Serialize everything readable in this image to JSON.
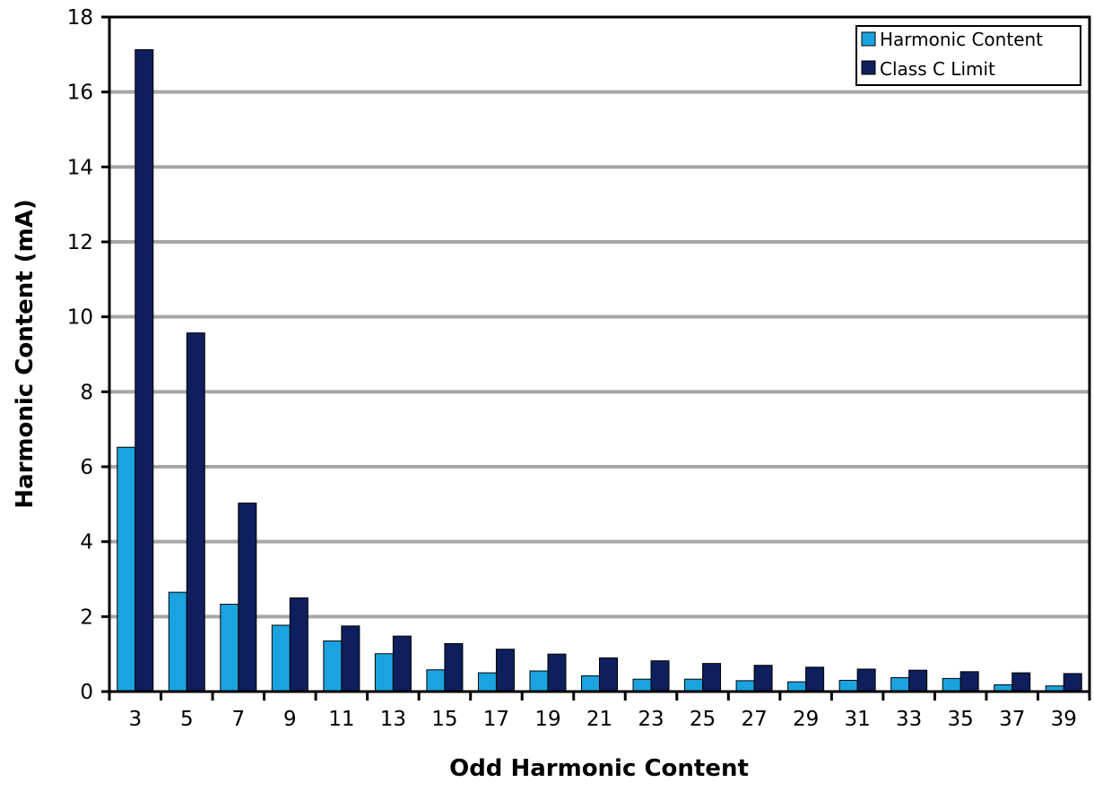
{
  "chart_data": {
    "type": "bar",
    "title": "",
    "xlabel": "Odd Harmonic Content",
    "ylabel": "Harmonic Content  (mA)",
    "ylim": [
      0,
      18
    ],
    "yticks": [
      0,
      2,
      4,
      6,
      8,
      10,
      12,
      14,
      16,
      18
    ],
    "grid": true,
    "legend_position": "top-right",
    "categories": [
      "3",
      "5",
      "7",
      "9",
      "11",
      "13",
      "15",
      "17",
      "19",
      "21",
      "23",
      "25",
      "27",
      "29",
      "31",
      "33",
      "35",
      "37",
      "39"
    ],
    "series": [
      {
        "name": "Harmonic Content",
        "color": "#1aa3e0",
        "values": [
          6.52,
          2.65,
          2.33,
          1.77,
          1.35,
          1.01,
          0.58,
          0.5,
          0.55,
          0.42,
          0.33,
          0.33,
          0.29,
          0.26,
          0.3,
          0.37,
          0.35,
          0.18,
          0.15
        ]
      },
      {
        "name": "Class C Limit",
        "color": "#0d1f5c",
        "values": [
          17.13,
          9.57,
          5.03,
          2.5,
          1.75,
          1.48,
          1.28,
          1.13,
          1.0,
          0.9,
          0.82,
          0.75,
          0.7,
          0.65,
          0.6,
          0.57,
          0.53,
          0.5,
          0.48
        ]
      }
    ]
  }
}
